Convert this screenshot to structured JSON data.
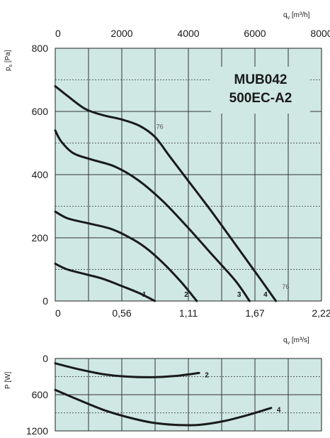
{
  "chart_data": [
    {
      "type": "line",
      "model_line1": "MUB042",
      "model_line2": "500EC-A2",
      "ylabel_main": "p",
      "ylabel_sub": "s",
      "ylabel_unit": "[Pa]",
      "xlabel_top_main": "q",
      "xlabel_top_sub": "v",
      "xlabel_top_unit": "[m³/h]",
      "xlabel_bottom_main": "q",
      "xlabel_bottom_sub": "v",
      "xlabel_bottom_unit": "[m³/s]",
      "ylim": [
        0,
        800
      ],
      "yticks": [
        "0",
        "200",
        "400",
        "600",
        "800"
      ],
      "xlim_bottom": [
        0,
        2.22
      ],
      "xticks_bottom": [
        "0",
        "0,56",
        "1,11",
        "1,67",
        "2,22"
      ],
      "xlim_top": [
        0,
        8000
      ],
      "xticks_top": [
        "0",
        "2000",
        "4000",
        "6000",
        "8000"
      ],
      "grid": true,
      "series": [
        {
          "name": "1",
          "x": [
            0,
            0.1,
            0.25,
            0.4,
            0.55,
            0.7,
            0.83
          ],
          "y": [
            118,
            100,
            85,
            70,
            48,
            25,
            0
          ]
        },
        {
          "name": "2",
          "x": [
            0,
            0.1,
            0.25,
            0.45,
            0.6,
            0.75,
            0.9,
            1.05,
            1.18
          ],
          "y": [
            283,
            262,
            248,
            230,
            205,
            170,
            120,
            60,
            0
          ]
        },
        {
          "name": "3",
          "x": [
            0,
            0.05,
            0.15,
            0.3,
            0.5,
            0.7,
            0.9,
            1.1,
            1.3,
            1.5,
            1.62
          ],
          "y": [
            540,
            505,
            468,
            448,
            425,
            380,
            315,
            235,
            150,
            65,
            0
          ]
        },
        {
          "name": "4",
          "x": [
            0,
            0.1,
            0.25,
            0.4,
            0.55,
            0.7,
            0.83,
            0.95,
            1.1,
            1.3,
            1.5,
            1.7,
            1.84
          ],
          "y": [
            680,
            650,
            608,
            588,
            575,
            555,
            520,
            460,
            385,
            285,
            180,
            75,
            0
          ]
        }
      ],
      "annotations": [
        {
          "text": "76",
          "x": 0.83,
          "y": 545
        },
        {
          "text": "76",
          "x": 1.88,
          "y": 38
        }
      ]
    },
    {
      "type": "line",
      "ylabel_main": "P",
      "ylabel_unit": "[W]",
      "ylim": [
        0,
        1200
      ],
      "yticks": [
        "0",
        "600",
        "1200"
      ],
      "xlim": [
        0,
        2.22
      ],
      "grid": true,
      "series": [
        {
          "name": "2",
          "x": [
            0,
            0.2,
            0.4,
            0.6,
            0.8,
            1.0,
            1.2
          ],
          "y": [
            80,
            180,
            260,
            300,
            310,
            290,
            240
          ]
        },
        {
          "name": "4",
          "x": [
            0,
            0.2,
            0.4,
            0.6,
            0.8,
            1.0,
            1.2,
            1.4,
            1.6,
            1.8
          ],
          "y": [
            520,
            690,
            850,
            970,
            1060,
            1100,
            1100,
            1040,
            940,
            820
          ]
        }
      ]
    }
  ]
}
